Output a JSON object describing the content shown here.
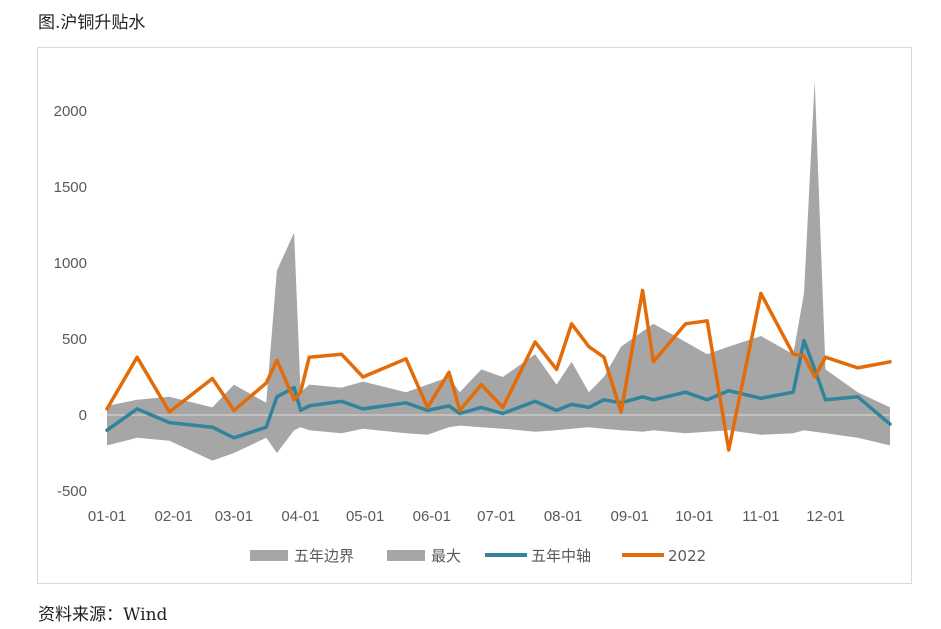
{
  "title": "图.沪铜升贴水",
  "source": "资料来源：Wind",
  "chart_data": {
    "type": "area",
    "title": "",
    "xlabel": "",
    "ylabel": "",
    "ylim": [
      -500,
      2000
    ],
    "yticks": [
      "-500",
      "0",
      "500",
      "1000",
      "1500",
      "2000"
    ],
    "xticks": [
      "01-01",
      "02-01",
      "03-01",
      "04-01",
      "05-01",
      "06-01",
      "07-01",
      "08-01",
      "09-01",
      "10-01",
      "11-01",
      "12-01"
    ],
    "grid": false,
    "legend": "bottom",
    "colors": {
      "band": "#a6a6a6",
      "axis_mid": "#31849b",
      "y2022": "#e36c09"
    },
    "x": [
      1,
      15,
      30,
      50,
      60,
      75,
      80,
      88,
      91,
      95,
      110,
      120,
      140,
      150,
      160,
      165,
      175,
      185,
      200,
      210,
      217,
      225,
      232,
      240,
      250,
      255,
      270,
      280,
      290,
      305,
      320,
      325,
      330,
      335,
      350,
      365
    ],
    "series": [
      {
        "name": "五年边界",
        "kind": "area-lower",
        "values": [
          -200,
          -150,
          -170,
          -300,
          -250,
          -150,
          -250,
          -100,
          -80,
          -100,
          -120,
          -90,
          -120,
          -130,
          -80,
          -70,
          -80,
          -90,
          -110,
          -100,
          -90,
          -80,
          -90,
          -100,
          -110,
          -100,
          -120,
          -110,
          -100,
          -130,
          -120,
          -100,
          -110,
          -120,
          -150,
          -200
        ]
      },
      {
        "name": "最大",
        "kind": "area-upper",
        "values": [
          60,
          100,
          120,
          50,
          200,
          80,
          950,
          1200,
          150,
          200,
          180,
          220,
          150,
          200,
          250,
          150,
          300,
          250,
          400,
          200,
          350,
          150,
          250,
          450,
          550,
          600,
          480,
          400,
          450,
          520,
          400,
          800,
          2200,
          300,
          150,
          50
        ]
      },
      {
        "name": "五年中轴",
        "kind": "line",
        "values": [
          -100,
          40,
          -50,
          -80,
          -150,
          -80,
          120,
          180,
          30,
          60,
          90,
          40,
          80,
          30,
          60,
          10,
          50,
          10,
          90,
          30,
          70,
          50,
          100,
          80,
          120,
          100,
          150,
          100,
          160,
          110,
          150,
          490,
          300,
          100,
          120,
          -60
        ]
      },
      {
        "name": "2022",
        "kind": "line",
        "values": [
          40,
          380,
          20,
          240,
          30,
          210,
          360,
          100,
          150,
          380,
          400,
          250,
          370,
          50,
          280,
          30,
          200,
          50,
          480,
          300,
          600,
          450,
          380,
          20,
          820,
          350,
          600,
          620,
          -230,
          800,
          400,
          390,
          250,
          380,
          310,
          350
        ]
      }
    ]
  }
}
